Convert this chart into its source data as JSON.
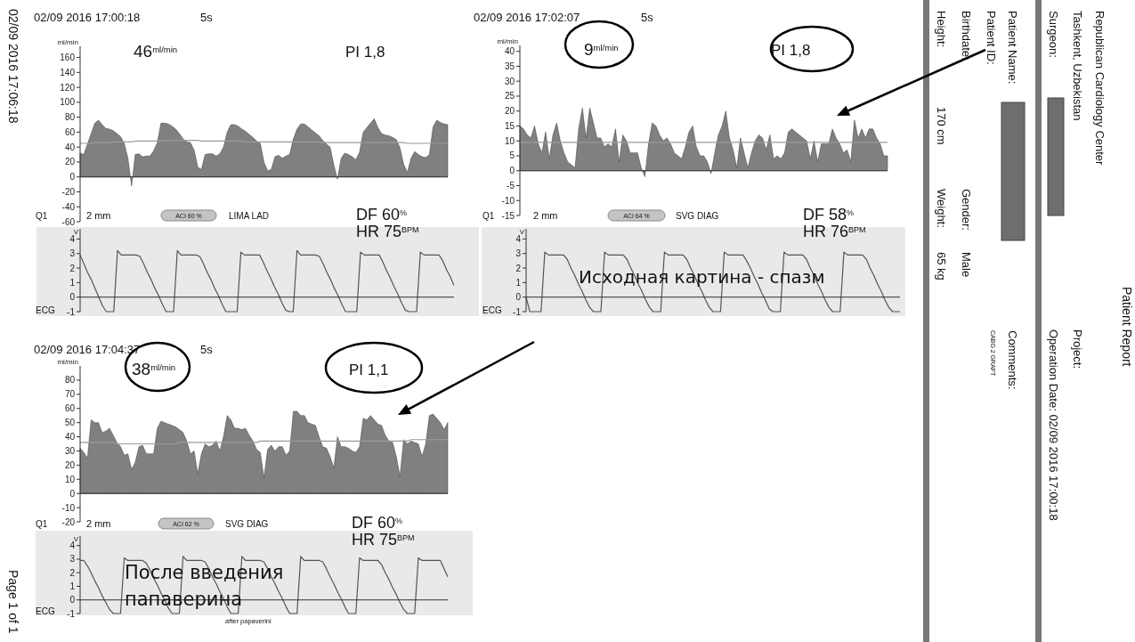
{
  "chart_data": [
    {
      "type": "area",
      "title": "02/09 2016 17:00:18",
      "subtitle": "5s",
      "ylabel": "ml/min",
      "categories": [
        null,
        null,
        null,
        null,
        null,
        null,
        null,
        null,
        null,
        null,
        null,
        null,
        null,
        null,
        null,
        null,
        null,
        null,
        null,
        null,
        null,
        null,
        null,
        null,
        null,
        null,
        null,
        null,
        null,
        null,
        null,
        null,
        null,
        null,
        null,
        null,
        null,
        null,
        null,
        null,
        null,
        null,
        null,
        null,
        null,
        null,
        null,
        null,
        null,
        null,
        null,
        null,
        null,
        null,
        null,
        null,
        null,
        null,
        null,
        null,
        null,
        null,
        null,
        null,
        null,
        null,
        null,
        null,
        null,
        null,
        null,
        null,
        null,
        null,
        null,
        null,
        null,
        null,
        null,
        null,
        null,
        null,
        null,
        null,
        null,
        null,
        null,
        null,
        null,
        null,
        null,
        null,
        null,
        null,
        null,
        null,
        null,
        null,
        null,
        null,
        null
      ],
      "ylim": [
        -60,
        175
      ],
      "yticks": [
        -60,
        -40,
        -20,
        0,
        20,
        40,
        60,
        80,
        100,
        120,
        140,
        160
      ],
      "tick_labels": "y",
      "annotations": [
        "46$^{ml/min}$",
        "PI 1,8"
      ],
      "series": [
        {
          "type": "area",
          "color": "#808080",
          "values": [
            32,
            30,
            44,
            58,
            72,
            76,
            70,
            65,
            64,
            62,
            58,
            54,
            45,
            25,
            -12,
            30,
            31,
            27,
            28,
            28,
            35,
            46,
            72,
            72,
            71,
            68,
            64,
            58,
            51,
            47,
            46,
            36,
            13,
            10,
            30,
            31,
            31,
            28,
            31,
            40,
            60,
            70,
            70,
            68,
            64,
            61,
            57,
            53,
            48,
            45,
            20,
            8,
            10,
            27,
            29,
            25,
            28,
            30,
            51,
            64,
            71,
            71,
            67,
            63,
            59,
            55,
            49,
            44,
            40,
            16,
            -3,
            25,
            32,
            30,
            27,
            23,
            33,
            60,
            66,
            72,
            78,
            66,
            58,
            56,
            55,
            53,
            50,
            39,
            17,
            6,
            25,
            34,
            30,
            27,
            26,
            30,
            67,
            76,
            73,
            71,
            70
          ]
        },
        {
          "type": "line",
          "color": "#9a9a9a",
          "values": [
            45,
            45,
            45,
            45,
            46,
            46,
            46,
            46,
            46,
            47,
            47,
            47,
            47,
            47,
            47,
            48,
            48,
            48,
            48,
            48,
            48,
            48,
            48,
            49,
            49,
            49,
            49,
            49,
            49,
            49,
            49,
            49,
            49,
            48,
            48,
            48,
            48,
            48,
            48,
            48,
            48,
            48,
            48,
            48,
            48,
            47,
            47,
            47,
            47,
            47,
            47,
            47,
            47,
            47,
            47,
            47,
            47,
            47,
            47,
            47,
            47,
            47,
            47,
            47,
            47,
            47,
            46,
            46,
            46,
            46,
            46,
            46,
            46,
            46,
            46,
            46,
            46,
            46,
            46,
            46,
            46,
            46,
            46,
            46,
            46,
            46,
            46,
            46,
            46,
            45,
            45,
            45,
            45,
            45,
            45,
            45,
            45,
            45,
            45,
            45,
            45
          ]
        }
      ]
    },
    {
      "type": "area",
      "title": "02/09 2016 17:02:07",
      "subtitle": "5s",
      "ylabel": "ml/min",
      "categories": [
        null,
        null,
        null,
        null,
        null,
        null,
        null,
        null,
        null,
        null,
        null,
        null,
        null,
        null,
        null,
        null,
        null,
        null,
        null,
        null,
        null,
        null,
        null,
        null,
        null,
        null,
        null,
        null,
        null,
        null,
        null,
        null,
        null,
        null,
        null,
        null,
        null,
        null,
        null,
        null,
        null,
        null,
        null,
        null,
        null,
        null,
        null,
        null,
        null,
        null,
        null,
        null,
        null,
        null,
        null,
        null,
        null,
        null,
        null,
        null,
        null,
        null,
        null,
        null,
        null,
        null,
        null,
        null,
        null,
        null,
        null,
        null,
        null,
        null,
        null,
        null,
        null,
        null,
        null,
        null,
        null,
        null,
        null,
        null,
        null,
        null,
        null,
        null,
        null,
        null,
        null,
        null,
        null,
        null,
        null,
        null,
        null,
        null,
        null,
        null,
        null
      ],
      "ylim": [
        -15,
        42
      ],
      "yticks": [
        -15,
        -10,
        -5,
        0,
        5,
        10,
        15,
        20,
        25,
        30,
        35,
        40
      ],
      "tick_labels": "y",
      "annotations": [
        "9$^{ml/min}$",
        "PI 1,8"
      ],
      "series": [
        {
          "type": "area",
          "color": "#808080",
          "values": [
            15,
            14,
            12,
            11,
            15,
            9,
            6,
            13,
            4,
            12,
            16,
            10,
            6,
            3,
            2,
            1,
            14,
            21,
            11,
            21,
            16,
            11,
            11,
            8,
            9,
            8,
            14,
            3,
            12,
            10,
            6,
            6,
            6,
            1,
            -2,
            9,
            16,
            15,
            12,
            10,
            11,
            9,
            6,
            5,
            4,
            8,
            13,
            15,
            8,
            5,
            5,
            3,
            -1,
            6,
            12,
            15,
            20,
            11,
            7,
            1,
            11,
            6,
            1,
            6,
            10,
            12,
            11,
            7,
            12,
            4,
            5,
            4,
            6,
            13,
            14,
            13,
            12,
            11,
            10,
            4,
            10,
            3,
            9,
            9,
            9,
            14,
            11,
            9,
            6,
            7,
            3,
            17,
            11,
            14,
            11,
            14,
            14,
            11,
            9,
            5,
            5
          ]
        },
        {
          "type": "line",
          "color": "#9a9a9a",
          "values": [
            9.5,
            9.5,
            9.5,
            9.5,
            9.5,
            9.5,
            9.5,
            9.5,
            9.5,
            9.5,
            9.5,
            9.5,
            9.5,
            9.5,
            9.5,
            9.5,
            9.5,
            9.5,
            9.5,
            9.5,
            9.5,
            9.5,
            9.5,
            9.5,
            9.5,
            9.5,
            9.5,
            9.5,
            9.5,
            9.5,
            9.5,
            9.5,
            9.5,
            9.5,
            9.5,
            9.5,
            9.5,
            9.5,
            9.5,
            9.5,
            9.5,
            9.5,
            9.5,
            9.5,
            9.5,
            9.5,
            9.5,
            9.5,
            9.5,
            9.5,
            9.5,
            9.5,
            9.5,
            9.5,
            9.5,
            9.5,
            9.5,
            9.5,
            9.5,
            9.5,
            9.5,
            9.5,
            9.5,
            9.5,
            9.5,
            9.5,
            9.5,
            9.5,
            9.5,
            9.5,
            9.5,
            9.5,
            9.5,
            9.5,
            9.5,
            9.5,
            9.5,
            9.5,
            9.5,
            9.5,
            9.5,
            9.5,
            9.5,
            9.5,
            9.5,
            9.5,
            9.5,
            9.5,
            9.5,
            9.5,
            9.5,
            9.5,
            9.5,
            9.5,
            9.5,
            9.5,
            9.5,
            9.5,
            9.5,
            9.5,
            9.5
          ]
        }
      ]
    },
    {
      "type": "line",
      "ylabel": "V",
      "categories": [
        null,
        null,
        null,
        null,
        null,
        null,
        null,
        null,
        null,
        null,
        null,
        null,
        null,
        null,
        null,
        null,
        null,
        null,
        null,
        null,
        null,
        null,
        null,
        null,
        null,
        null,
        null,
        null,
        null,
        null,
        null,
        null,
        null,
        null,
        null,
        null,
        null,
        null,
        null,
        null,
        null,
        null,
        null,
        null,
        null,
        null,
        null,
        null,
        null,
        null,
        null,
        null,
        null,
        null,
        null,
        null,
        null,
        null,
        null,
        null,
        null,
        null,
        null,
        null,
        null,
        null,
        null,
        null,
        null,
        null,
        null,
        null,
        null,
        null,
        null,
        null,
        null,
        null,
        null,
        null,
        null,
        null,
        null,
        null,
        null,
        null,
        null,
        null,
        null,
        null,
        null,
        null,
        null,
        null,
        null,
        null,
        null,
        null,
        null,
        null,
        null
      ],
      "ylim": [
        -1,
        4.7
      ],
      "yticks": [
        -1,
        0,
        1,
        2,
        3,
        4
      ],
      "tick_labels": "y",
      "annotations": [
        "Q1",
        "2 mm",
        "ACI 60 %",
        "LIMA LAD",
        "DF 60$^{%}$",
        "HR 75$^{BPM}$",
        "ECG"
      ],
      "series": [
        {
          "color": "#555555",
          "values": [
            2.9,
            2.3,
            1.7,
            1.2,
            0.6,
            0,
            -0.6,
            -1,
            -1,
            -1,
            3.2,
            2.9,
            2.9,
            2.9,
            2.9,
            2.9,
            2.8,
            2.3,
            1.7,
            1.2,
            0.6,
            0.1,
            -0.5,
            -1,
            -1,
            -1,
            3.2,
            2.9,
            2.9,
            2.9,
            2.9,
            2.9,
            2.8,
            2.3,
            1.7,
            1.2,
            0.6,
            0.1,
            -0.5,
            -1,
            -1,
            -1,
            -1,
            3.1,
            2.9,
            2.9,
            2.9,
            2.9,
            2.9,
            2.4,
            1.8,
            1.3,
            0.7,
            0.2,
            -0.4,
            -0.9,
            -1,
            -1,
            3.2,
            2.9,
            2.9,
            2.9,
            2.9,
            2.9,
            2.8,
            2.3,
            1.7,
            1.2,
            0.6,
            0.1,
            -0.5,
            -1,
            -1,
            -1,
            -1,
            3.1,
            2.9,
            2.9,
            2.9,
            2.9,
            2.9,
            2.4,
            1.8,
            1.3,
            0.7,
            0.2,
            -0.4,
            -0.9,
            -1,
            -1,
            -1,
            3.1,
            2.9,
            2.9,
            2.9,
            2.9,
            2.9,
            2.5,
            1.9,
            1.4,
            0.8
          ]
        }
      ]
    },
    {
      "type": "line",
      "ylabel": "V",
      "categories": [
        null,
        null,
        null,
        null,
        null,
        null,
        null,
        null,
        null,
        null,
        null,
        null,
        null,
        null,
        null,
        null,
        null,
        null,
        null,
        null,
        null,
        null,
        null,
        null,
        null,
        null,
        null,
        null,
        null,
        null,
        null,
        null,
        null,
        null,
        null,
        null,
        null,
        null,
        null,
        null,
        null,
        null,
        null,
        null,
        null,
        null,
        null,
        null,
        null,
        null,
        null,
        null,
        null,
        null,
        null,
        null,
        null,
        null,
        null,
        null,
        null,
        null,
        null,
        null,
        null,
        null,
        null,
        null,
        null,
        null,
        null,
        null,
        null,
        null,
        null,
        null,
        null,
        null,
        null,
        null,
        null,
        null,
        null,
        null,
        null,
        null,
        null,
        null,
        null,
        null,
        null,
        null,
        null,
        null,
        null,
        null,
        null,
        null,
        null,
        null,
        null
      ],
      "ylim": [
        -1,
        4.7
      ],
      "yticks": [
        -1,
        0,
        1,
        2,
        3,
        4
      ],
      "tick_labels": "y",
      "annotations": [
        "Q1",
        "2 mm",
        "ACI 64 %",
        "SVG DIAG",
        "DF 58$^{%}$",
        "HR 76$^{BPM}$",
        "ECG",
        "Исходная картина - спазм"
      ],
      "series": [
        {
          "color": "#555555",
          "values": [
            0,
            -1,
            -1,
            -1,
            -1,
            3.1,
            2.9,
            2.9,
            2.9,
            2.9,
            2.9,
            2.6,
            2.0,
            1.5,
            0.9,
            0.4,
            -0.2,
            -0.7,
            -1,
            -1,
            -1,
            3.1,
            2.9,
            2.9,
            2.9,
            2.9,
            2.9,
            2.6,
            2.0,
            1.5,
            0.9,
            0.4,
            -0.2,
            -0.7,
            -1,
            -1,
            -1,
            3.1,
            2.9,
            2.9,
            2.9,
            2.9,
            2.9,
            2.6,
            2.0,
            1.5,
            0.9,
            0.4,
            -0.2,
            -0.7,
            -1,
            -1,
            -1,
            3.1,
            2.9,
            2.9,
            2.9,
            2.9,
            2.9,
            2.5,
            2.0,
            1.4,
            0.9,
            0.3,
            -0.2,
            -0.8,
            -1,
            -1,
            -1,
            3.1,
            2.9,
            2.9,
            2.9,
            2.9,
            2.9,
            2.6,
            2.0,
            1.5,
            0.9,
            0.4,
            -0.2,
            -0.7,
            -1,
            -1,
            -1,
            3.1,
            2.9,
            2.9,
            2.9,
            2.9,
            2.9,
            2.6,
            2.0,
            1.5,
            0.9,
            0.4,
            -0.2,
            -0.7,
            -1,
            -1,
            -1
          ]
        }
      ]
    },
    {
      "type": "area",
      "title": "02/09 2016 17:04:37",
      "subtitle": "5s",
      "ylabel": "ml/min",
      "categories": [
        null,
        null,
        null,
        null,
        null,
        null,
        null,
        null,
        null,
        null,
        null,
        null,
        null,
        null,
        null,
        null,
        null,
        null,
        null,
        null,
        null,
        null,
        null,
        null,
        null,
        null,
        null,
        null,
        null,
        null,
        null,
        null,
        null,
        null,
        null,
        null,
        null,
        null,
        null,
        null,
        null,
        null,
        null,
        null,
        null,
        null,
        null,
        null,
        null,
        null,
        null,
        null,
        null,
        null,
        null,
        null,
        null,
        null,
        null,
        null,
        null,
        null,
        null,
        null,
        null,
        null,
        null,
        null,
        null,
        null,
        null,
        null,
        null,
        null,
        null,
        null,
        null,
        null,
        null,
        null,
        null,
        null,
        null,
        null,
        null,
        null,
        null,
        null,
        null,
        null,
        null,
        null,
        null,
        null,
        null,
        null,
        null,
        null,
        null,
        null,
        null
      ],
      "ylim": [
        -20,
        90
      ],
      "yticks": [
        -20,
        -10,
        0,
        10,
        20,
        30,
        40,
        50,
        60,
        70,
        80
      ],
      "tick_labels": "y",
      "annotations": [
        "38$^{ml/min}$",
        "PI 1,1"
      ],
      "series": [
        {
          "type": "area",
          "color": "#808080",
          "values": [
            32,
            29,
            25,
            52,
            50,
            50,
            43,
            44,
            46,
            41,
            36,
            33,
            27,
            28,
            17,
            22,
            33,
            34,
            28,
            28,
            28,
            46,
            51,
            50,
            49,
            48,
            47,
            45,
            43,
            37,
            28,
            30,
            14,
            28,
            35,
            33,
            34,
            37,
            30,
            40,
            55,
            52,
            46,
            46,
            45,
            46,
            41,
            37,
            31,
            29,
            11,
            31,
            34,
            30,
            33,
            33,
            27,
            30,
            58,
            58,
            55,
            55,
            50,
            49,
            48,
            40,
            33,
            32,
            26,
            18,
            40,
            33,
            33,
            32,
            30,
            29,
            33,
            53,
            52,
            55,
            52,
            49,
            48,
            41,
            37,
            36,
            26,
            12,
            38,
            35,
            37,
            36,
            35,
            26,
            35,
            55,
            56,
            53,
            50,
            45,
            50
          ]
        },
        {
          "type": "line",
          "color": "#9a9a9a",
          "values": [
            36,
            36,
            36,
            36,
            36,
            36,
            36,
            36,
            36,
            36,
            35,
            35,
            35,
            35,
            35,
            35,
            35,
            35,
            35,
            35,
            35,
            35,
            35,
            35,
            35,
            35,
            35,
            36,
            36,
            36,
            36,
            36,
            36,
            36,
            36,
            36,
            36,
            36,
            36,
            36,
            36,
            36,
            36,
            36,
            36,
            36,
            36,
            36,
            36,
            37,
            37,
            37,
            37,
            37,
            37,
            37,
            37,
            37,
            37,
            37,
            37,
            37,
            37,
            37,
            37,
            37,
            37,
            37,
            37,
            37,
            37,
            37,
            37,
            37,
            37,
            37,
            37,
            37,
            37,
            37,
            37,
            37,
            37,
            37,
            37,
            37,
            37,
            37,
            37,
            37,
            38,
            38,
            38,
            38,
            38,
            38,
            38,
            38,
            38,
            38,
            38
          ]
        }
      ]
    },
    {
      "type": "line",
      "ylabel": "V",
      "categories": [
        null,
        null,
        null,
        null,
        null,
        null,
        null,
        null,
        null,
        null,
        null,
        null,
        null,
        null,
        null,
        null,
        null,
        null,
        null,
        null,
        null,
        null,
        null,
        null,
        null,
        null,
        null,
        null,
        null,
        null,
        null,
        null,
        null,
        null,
        null,
        null,
        null,
        null,
        null,
        null,
        null,
        null,
        null,
        null,
        null,
        null,
        null,
        null,
        null,
        null,
        null,
        null,
        null,
        null,
        null,
        null,
        null,
        null,
        null,
        null,
        null,
        null,
        null,
        null,
        null,
        null,
        null,
        null,
        null,
        null,
        null,
        null,
        null,
        null,
        null,
        null,
        null,
        null,
        null,
        null,
        null,
        null,
        null,
        null,
        null,
        null,
        null,
        null,
        null,
        null,
        null,
        null,
        null,
        null,
        null,
        null,
        null,
        null,
        null,
        null,
        null
      ],
      "ylim": [
        -1,
        4.7
      ],
      "yticks": [
        -1,
        0,
        1,
        2,
        3,
        4
      ],
      "tick_labels": "y",
      "annotations": [
        "Q1",
        "2 mm",
        "ACI 62 %",
        "SVG DIAG",
        "DF 60$^{%}$",
        "HR 75$^{BPM}$",
        "ECG",
        "После введения папаверина",
        "after papaverini"
      ],
      "series": [
        {
          "color": "#555555",
          "values": [
            2.9,
            2.9,
            2.5,
            2.0,
            1.4,
            0.9,
            0.3,
            -0.2,
            -0.7,
            -1,
            -1,
            -1,
            3.1,
            2.9,
            2.9,
            2.9,
            2.9,
            2.9,
            2.7,
            2.2,
            1.6,
            1.1,
            0.5,
            0,
            -0.6,
            -1,
            -1,
            -1,
            3.2,
            2.9,
            2.9,
            2.9,
            2.9,
            2.9,
            2.8,
            2.3,
            1.7,
            1.2,
            0.6,
            0.1,
            -0.5,
            -1,
            -1,
            -1,
            3.2,
            2.9,
            2.9,
            2.9,
            2.9,
            2.9,
            2.8,
            2.3,
            1.7,
            1.2,
            0.6,
            0.1,
            -0.5,
            -1,
            -1,
            -1,
            3.2,
            2.9,
            2.9,
            2.9,
            2.9,
            2.9,
            2.8,
            2.3,
            1.7,
            1.2,
            0.6,
            0.1,
            -0.5,
            -1,
            -1,
            -1,
            3.1,
            2.9,
            2.9,
            2.9,
            2.9,
            2.9,
            2.6,
            2.0,
            1.5,
            0.9,
            0.4,
            -0.2,
            -0.7,
            -1,
            -1,
            -1,
            3.1,
            2.9,
            2.9,
            2.9,
            2.9,
            2.9,
            2.9,
            2.3,
            1.7
          ]
        }
      ]
    },
    {
      "type": "other",
      "title": "Patient Report",
      "annotations": [
        "Republican Cardiology Center",
        "Tashkent, Uzbekistan",
        "Surgeon:",
        "Project:",
        "Operation Date: 02/09 2016 17:00:18",
        "Patient Name:",
        "Patient ID:",
        "Birthdate:",
        "Height:",
        "170 cm",
        "Gender:",
        "Male",
        "Weight:",
        "65 kg",
        "Comments:",
        "CABG 2 GRAFT",
        "02/09 2016 17:06:18",
        "Page 1 of 1"
      ]
    }
  ]
}
